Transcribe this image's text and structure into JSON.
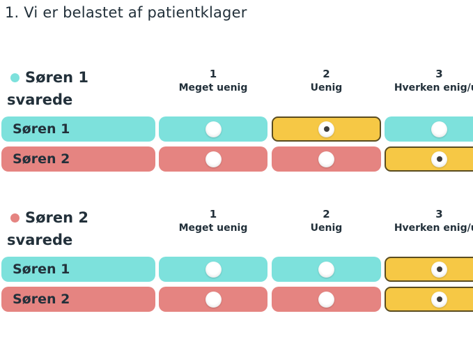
{
  "title": "1. Vi er belastet af patientklager",
  "colors": {
    "text": "#22303a",
    "teal": "#7de1dc",
    "red": "#e58481",
    "selected_bg": "#f6c845",
    "selected_border": "#5a4c20"
  },
  "scale": [
    {
      "number": "1",
      "label": "Meget uenig"
    },
    {
      "number": "2",
      "label": "Uenig"
    },
    {
      "number": "3",
      "label": "Hverken enig/ue"
    }
  ],
  "sections": [
    {
      "legend": {
        "name": "Søren 1",
        "suffix": "svarede",
        "dot_color": "#7de1dc"
      },
      "rows": [
        {
          "label": "Søren 1",
          "row_color": "#7de1dc",
          "selected_column": 2
        },
        {
          "label": "Søren 2",
          "row_color": "#e58481",
          "selected_column": 3
        }
      ]
    },
    {
      "legend": {
        "name": "Søren 2",
        "suffix": "svarede",
        "dot_color": "#e58481"
      },
      "rows": [
        {
          "label": "Søren 1",
          "row_color": "#7de1dc",
          "selected_column": 3
        },
        {
          "label": "Søren 2",
          "row_color": "#e58481",
          "selected_column": 3
        }
      ]
    }
  ]
}
